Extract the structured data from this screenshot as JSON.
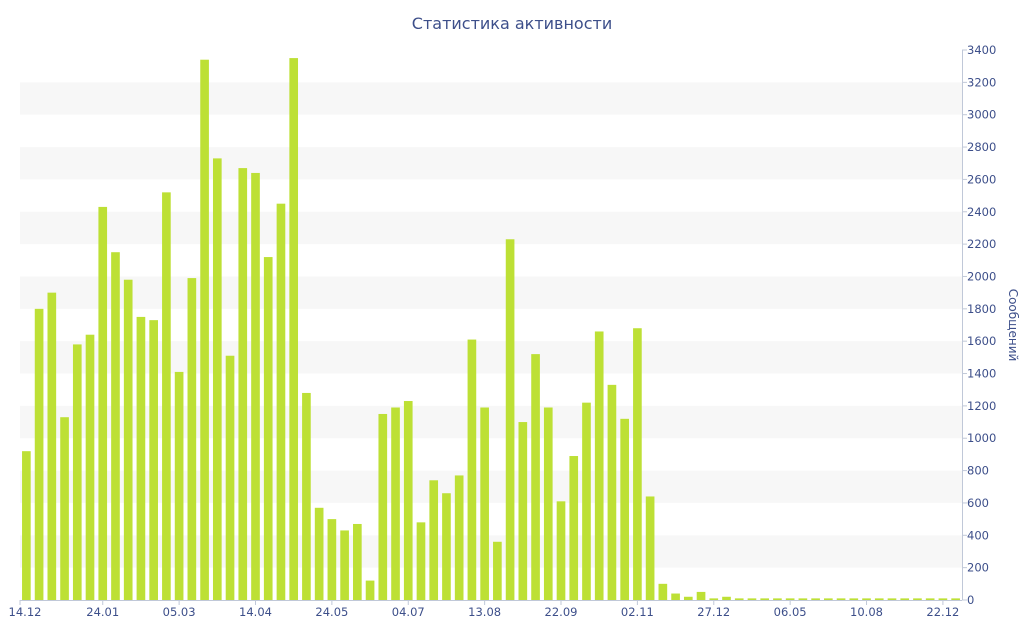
{
  "chart_data": {
    "type": "bar",
    "title": "Статистика активности",
    "xlabel": "",
    "ylabel": "Сообщений",
    "ylim": [
      0,
      3400
    ],
    "y_ticks": [
      0,
      200,
      400,
      600,
      800,
      1000,
      1200,
      1400,
      1600,
      1800,
      2000,
      2200,
      2400,
      2600,
      2800,
      3000,
      3200,
      3400
    ],
    "y_axis_side": "right",
    "grid": "alternating horizontal bands",
    "legend": "none",
    "x_tick_labels": [
      {
        "index": 0,
        "label": "14.12"
      },
      {
        "index": 6,
        "label": "24.01"
      },
      {
        "index": 12,
        "label": "05.03"
      },
      {
        "index": 18,
        "label": "14.04"
      },
      {
        "index": 24,
        "label": "24.05"
      },
      {
        "index": 30,
        "label": "04.07"
      },
      {
        "index": 36,
        "label": "13.08"
      },
      {
        "index": 42,
        "label": "22.09"
      },
      {
        "index": 48,
        "label": "02.11"
      },
      {
        "index": 54,
        "label": "27.12"
      },
      {
        "index": 60,
        "label": "06.05"
      },
      {
        "index": 66,
        "label": "10.08"
      },
      {
        "index": 72,
        "label": "22.12"
      }
    ],
    "series": [
      {
        "values": [
          920,
          1800,
          1900,
          1130,
          1580,
          1640,
          2430,
          2150,
          1980,
          1750,
          1730,
          2520,
          1410,
          1990,
          3340,
          2730,
          1510,
          2670,
          2640,
          2120,
          2450,
          3350,
          1280,
          570,
          500,
          430,
          470,
          120,
          1150,
          1190,
          1230,
          480,
          740,
          660,
          770,
          1610,
          1190,
          360,
          2230,
          1100,
          1520,
          1190,
          610,
          890,
          1220,
          1660,
          1330,
          1120,
          1680,
          640,
          100,
          40,
          20,
          50,
          10,
          20,
          10,
          10,
          10,
          10,
          10,
          10,
          10,
          10,
          10,
          10,
          10,
          10,
          10,
          10,
          10,
          10,
          10,
          10
        ]
      }
    ],
    "colors": {
      "bar": "#bde035",
      "band": "#f7f7f7",
      "text": "#3d4f8a",
      "axis": "#c0c8d8"
    }
  }
}
